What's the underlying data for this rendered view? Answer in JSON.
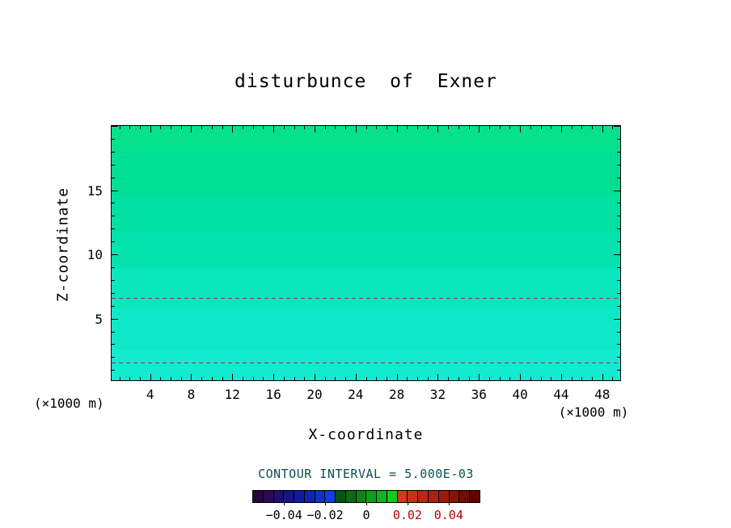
{
  "chart_data": {
    "type": "heatmap",
    "subtype": "filled-contour",
    "title": "disturbunce  of  Exner",
    "xlabel": "X-coordinate",
    "ylabel": "Z-coordinate",
    "x_unit_label": "(×1000 m)",
    "y_unit_label": "(×1000 m)",
    "contour_interval_text": "CONTOUR INTERVAL = 5.000E-03",
    "x_axis": {
      "min": 0.25,
      "max": 49.75,
      "minor_step": 1,
      "major_step": 4,
      "tick_labels": [
        4,
        8,
        12,
        16,
        20,
        24,
        28,
        32,
        36,
        40,
        44,
        48
      ]
    },
    "y_axis": {
      "min": 0.2,
      "max": 20,
      "minor_step": 1,
      "major_step": 5,
      "tick_labels": [
        5,
        10,
        15
      ]
    },
    "field": {
      "description": "Horizontally uniform Exner-function disturbance near zero: spring-green at top grading through faint horizontal contour-fill bands to cyan at the bottom",
      "bands": [
        {
          "from": 0.0,
          "to": 0.1,
          "color": "#06E18D"
        },
        {
          "from": 0.1,
          "to": 0.27,
          "color": "#00DE94"
        },
        {
          "from": 0.27,
          "to": 0.42,
          "color": "#00E0A0"
        },
        {
          "from": 0.42,
          "to": 0.56,
          "color": "#04E3AF"
        },
        {
          "from": 0.56,
          "to": 0.72,
          "color": "#0AE6BE"
        },
        {
          "from": 0.72,
          "to": 0.88,
          "color": "#0FE8C8"
        },
        {
          "from": 0.88,
          "to": 1.0,
          "color": "#13EACF"
        }
      ]
    },
    "contour_lines": [
      {
        "z": 6.6,
        "style": "dashed",
        "color": "#A03030"
      },
      {
        "z": 1.6,
        "style": "dashed",
        "color": "#A03030"
      }
    ],
    "colorbar": {
      "min": -0.055,
      "max": 0.055,
      "interval": 0.005,
      "colors": [
        "#24073E",
        "#2B0A54",
        "#200E6E",
        "#151386",
        "#0E1B9E",
        "#0C26B2",
        "#0D33C4",
        "#0F41D2",
        "#0A5212",
        "#0C6A14",
        "#0E8316",
        "#109B19",
        "#12B31C",
        "#14CA1F",
        "#D23A1E",
        "#C63219",
        "#B82A14",
        "#AA2210",
        "#9A1A0C",
        "#8A1208",
        "#760A05",
        "#600402"
      ],
      "ticks": [
        {
          "label": "−0.04",
          "value": -0.04,
          "color": "#000000"
        },
        {
          "label": "−0.02",
          "value": -0.02,
          "color": "#000000"
        },
        {
          "label": "0",
          "value": 0.0,
          "color": "#000000"
        },
        {
          "label": "0.02",
          "value": 0.02,
          "color": "#BB0000"
        },
        {
          "label": "0.04",
          "value": 0.04,
          "color": "#BB0000"
        }
      ]
    }
  }
}
